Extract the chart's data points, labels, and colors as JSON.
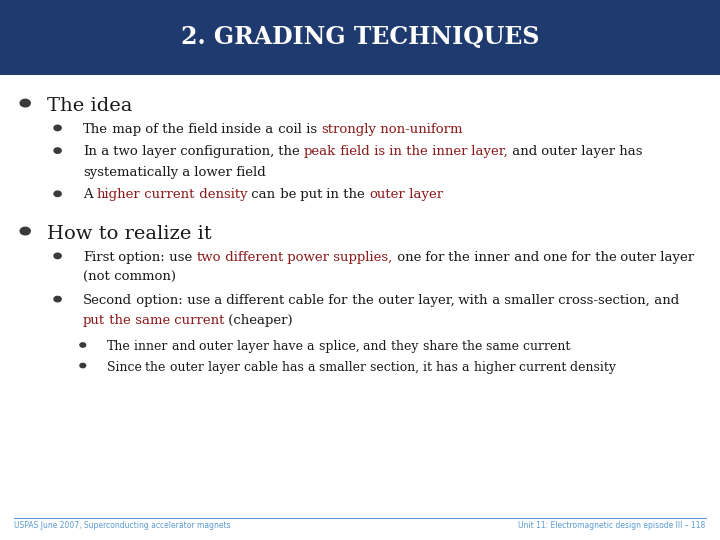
{
  "title": "2. GRADING TECHNIQUES",
  "title_bg_color": "#1e3a6e",
  "title_text_color": "#ffffff",
  "bg_color": "#ffffff",
  "red_color": "#8b1a1a",
  "footer_color": "#5b9bd5",
  "footer_left": "USPAS June 2007, Superconducting accelerator magnets",
  "footer_right": "Unit 11: Electromagnetic design episode III – 118",
  "section1_header": "The idea",
  "section1_bullets": [
    [
      {
        "text": "The map of the field inside a coil is ",
        "color": "#1a1a1a"
      },
      {
        "text": "strongly non-uniform",
        "color": "#8b1a1a"
      }
    ],
    [
      {
        "text": "In a two layer configuration, the ",
        "color": "#1a1a1a"
      },
      {
        "text": "peak field is in the inner layer,",
        "color": "#8b1a1a"
      },
      {
        "text": " and outer layer has systematically a lower field",
        "color": "#1a1a1a"
      }
    ],
    [
      {
        "text": "A ",
        "color": "#1a1a1a"
      },
      {
        "text": "higher current density",
        "color": "#8b1a1a"
      },
      {
        "text": " can be put in the ",
        "color": "#1a1a1a"
      },
      {
        "text": "outer layer",
        "color": "#8b1a1a"
      }
    ]
  ],
  "section2_header": "How to realize it",
  "section2_bullets": [
    [
      {
        "text": "First option: use ",
        "color": "#1a1a1a"
      },
      {
        "text": "two different power supplies,",
        "color": "#8b1a1a"
      },
      {
        "text": " one for the inner and one for the outer layer (not common)",
        "color": "#1a1a1a"
      }
    ],
    [
      {
        "text": "Second option: use a different cable for the outer layer, with a smaller cross-section, and ",
        "color": "#1a1a1a"
      },
      {
        "text": "put the same current",
        "color": "#8b1a1a"
      },
      {
        "text": " (cheaper)",
        "color": "#1a1a1a"
      }
    ]
  ],
  "section2_sub_bullets": [
    [
      {
        "text": "The inner and outer layer have a splice, and they share the same current",
        "color": "#1a1a1a"
      }
    ],
    [
      {
        "text": "Since the outer layer cable has a smaller section, it has a higher current density",
        "color": "#1a1a1a"
      }
    ]
  ]
}
